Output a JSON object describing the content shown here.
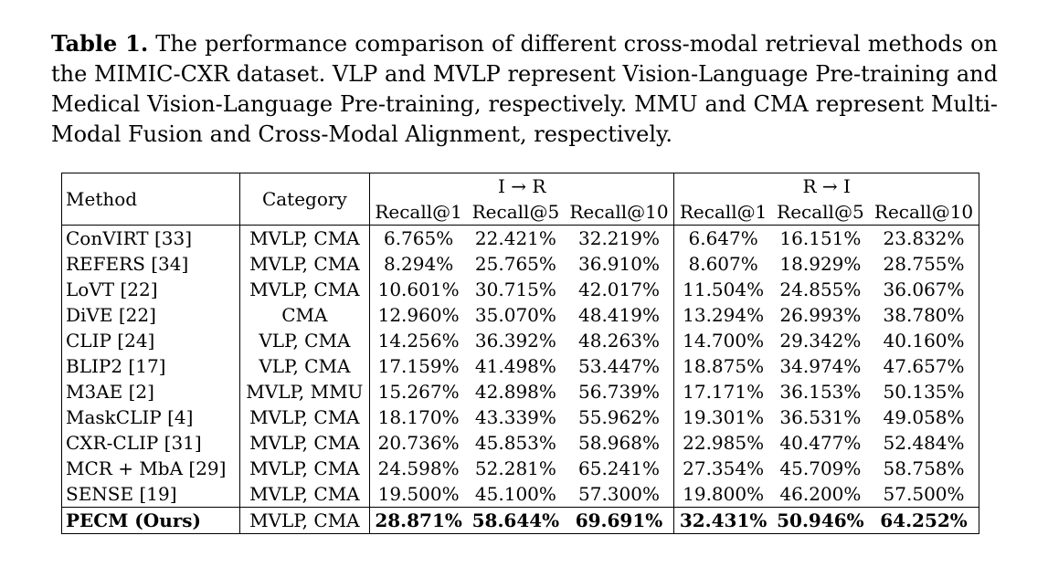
{
  "caption": {
    "label": "Table 1.",
    "text": " The performance comparison of different cross-modal retrieval methods on the MIMIC-CXR dataset. VLP and MVLP represent Vision-Language Pre-training and Medical Vision-Language Pre-training, respectively. MMU and CMA represent Multi-Modal Fusion and Cross-Modal Alignment, respectively."
  },
  "table": {
    "headers": {
      "method": "Method",
      "category": "Category",
      "group_ir": "I → R",
      "group_ri": "R → I",
      "metrics": [
        "Recall@1",
        "Recall@5",
        "Recall@10",
        "Recall@1",
        "Recall@5",
        "Recall@10"
      ]
    },
    "rows": [
      {
        "method": "ConVIRT [33]",
        "category": "MVLP, CMA",
        "values": [
          "6.765%",
          "22.421%",
          "32.219%",
          "6.647%",
          "16.151%",
          "23.832%"
        ]
      },
      {
        "method": "REFERS [34]",
        "category": "MVLP, CMA",
        "values": [
          "8.294%",
          "25.765%",
          "36.910%",
          "8.607%",
          "18.929%",
          "28.755%"
        ]
      },
      {
        "method": "LoVT [22]",
        "category": "MVLP, CMA",
        "values": [
          "10.601%",
          "30.715%",
          "42.017%",
          "11.504%",
          "24.855%",
          "36.067%"
        ]
      },
      {
        "method": "DiVE [22]",
        "category": "CMA",
        "values": [
          "12.960%",
          "35.070%",
          "48.419%",
          "13.294%",
          "26.993%",
          "38.780%"
        ]
      },
      {
        "method": "CLIP [24]",
        "category": "VLP, CMA",
        "values": [
          "14.256%",
          "36.392%",
          "48.263%",
          "14.700%",
          "29.342%",
          "40.160%"
        ]
      },
      {
        "method": "BLIP2 [17]",
        "category": "VLP, CMA",
        "values": [
          "17.159%",
          "41.498%",
          "53.447%",
          "18.875%",
          "34.974%",
          "47.657%"
        ]
      },
      {
        "method": "M3AE [2]",
        "category": "MVLP, MMU",
        "values": [
          "15.267%",
          "42.898%",
          "56.739%",
          "17.171%",
          "36.153%",
          "50.135%"
        ]
      },
      {
        "method": "MaskCLIP [4]",
        "category": "MVLP, CMA",
        "values": [
          "18.170%",
          "43.339%",
          "55.962%",
          "19.301%",
          "36.531%",
          "49.058%"
        ]
      },
      {
        "method": "CXR-CLIP [31]",
        "category": "MVLP, CMA",
        "values": [
          "20.736%",
          "45.853%",
          "58.968%",
          "22.985%",
          "40.477%",
          "52.484%"
        ]
      },
      {
        "method": "MCR + MbA [29]",
        "category": "MVLP, CMA",
        "values": [
          "24.598%",
          "52.281%",
          "65.241%",
          "27.354%",
          "45.709%",
          "58.758%"
        ]
      },
      {
        "method": "SENSE [19]",
        "category": "MVLP, CMA",
        "values": [
          "19.500%",
          "45.100%",
          "57.300%",
          "19.800%",
          "46.200%",
          "57.500%"
        ]
      }
    ],
    "ours": {
      "method": "PECM (Ours)",
      "category": "MVLP, CMA",
      "values": [
        "28.871%",
        "58.644%",
        "69.691%",
        "32.431%",
        "50.946%",
        "64.252%"
      ]
    }
  }
}
